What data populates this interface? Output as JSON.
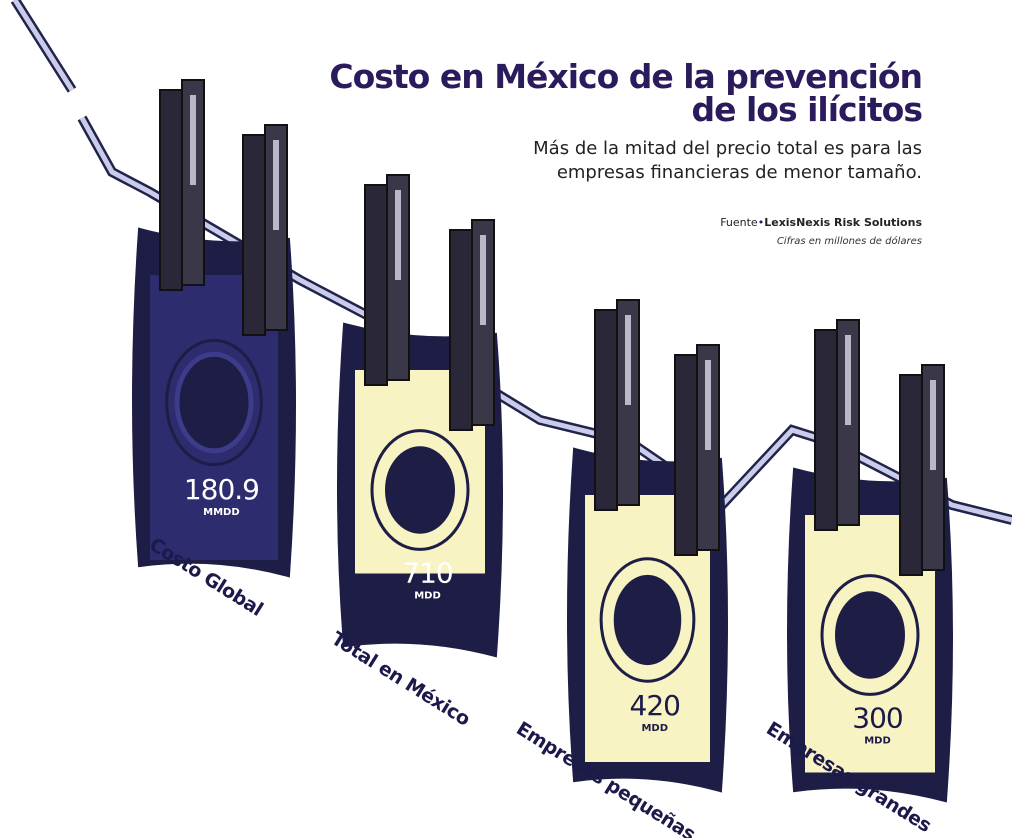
{
  "header": {
    "title_lines": [
      "Costo en México de la prevención",
      "de los ilícitos"
    ],
    "subtitle_lines": [
      "Más de la mitad del precio total es para las",
      "empresas financieras de menor tamaño."
    ],
    "source_label": "Fuente",
    "source": "LexisNexis Risk Solutions",
    "note": "Cifras en millones de dólares"
  },
  "items": [
    {
      "label": "Costo Global",
      "value": 180.9,
      "unit": "MMDD"
    },
    {
      "label": "Total en México",
      "value": 710,
      "unit": "MDD"
    },
    {
      "label": "Empresas pequeñas",
      "value": 420,
      "unit": "MDD"
    },
    {
      "label": "Empresas grandes",
      "value": 300,
      "unit": "MDD"
    }
  ]
}
